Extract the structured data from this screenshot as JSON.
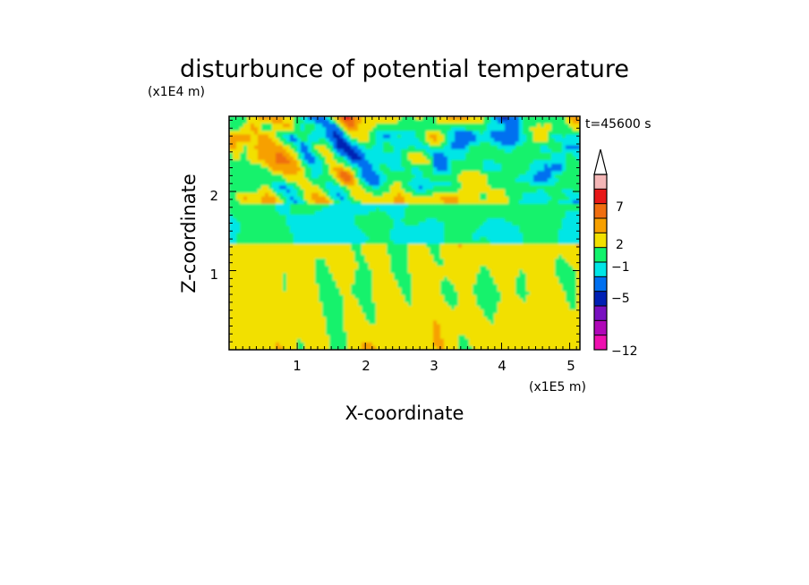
{
  "chart_data": {
    "type": "heatmap",
    "title": "disturbunce of potential temperature",
    "xlabel": "X-coordinate",
    "ylabel": "Z-coordinate",
    "x_unit": "(x1E5 m)",
    "y_unit": "(x1E4 m)",
    "time_label": "t=45600 s",
    "xlim": [
      0,
      5.15
    ],
    "ylim": [
      0,
      2.95
    ],
    "xticks": [
      "1",
      "2",
      "3",
      "4",
      "5"
    ],
    "yticks": [
      "1",
      "2"
    ],
    "colorbar": {
      "labels": [
        "7",
        "2",
        "−1",
        "−5",
        "−12"
      ],
      "colors": [
        "#f4b6b6",
        "#e81818",
        "#f06e10",
        "#f7a000",
        "#f2e000",
        "#12f26c",
        "#00e6e6",
        "#0070f0",
        "#0020b4",
        "#7810c0",
        "#b008b8",
        "#ee10b0"
      ],
      "extend_top": true
    },
    "legend_position": "right",
    "grid": false
  }
}
